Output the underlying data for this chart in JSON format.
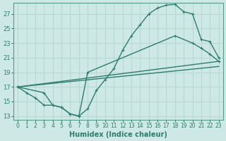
{
  "title": "",
  "xlabel": "Humidex (Indice chaleur)",
  "ylabel": "",
  "background_color": "#cde8e5",
  "grid_color": "#b8d8d4",
  "line_color": "#2d7d6e",
  "marker_color": "#2d7d6e",
  "xlim": [
    -0.5,
    23.5
  ],
  "ylim": [
    12.5,
    28.5
  ],
  "xticks": [
    0,
    1,
    2,
    3,
    4,
    5,
    6,
    7,
    8,
    9,
    10,
    11,
    12,
    13,
    14,
    15,
    16,
    17,
    18,
    19,
    20,
    21,
    22,
    23
  ],
  "yticks": [
    13,
    15,
    17,
    19,
    21,
    23,
    25,
    27
  ],
  "curve1_x": [
    0,
    1,
    2,
    3,
    4,
    5,
    6,
    7,
    8,
    9,
    10,
    11,
    12,
    13,
    14,
    15,
    16,
    17,
    18,
    19,
    20,
    21,
    22,
    23
  ],
  "curve1_y": [
    17.0,
    16.2,
    15.5,
    14.5,
    14.5,
    14.2,
    13.3,
    13.0,
    14.0,
    16.5,
    18.0,
    19.5,
    22.0,
    24.0,
    25.5,
    27.0,
    27.8,
    28.2,
    28.3,
    27.3,
    27.0,
    23.5,
    23.2,
    21.0
  ],
  "curve2_x": [
    0,
    3,
    4,
    5,
    6,
    7,
    8,
    18,
    20,
    21,
    22,
    23
  ],
  "curve2_y": [
    17.0,
    16.2,
    14.5,
    14.2,
    13.3,
    13.0,
    19.0,
    24.0,
    23.0,
    22.3,
    21.5,
    20.5
  ],
  "curve3_x": [
    0,
    23
  ],
  "curve3_y": [
    17.0,
    19.8
  ],
  "curve4_x": [
    0,
    23
  ],
  "curve4_y": [
    17.0,
    20.5
  ]
}
